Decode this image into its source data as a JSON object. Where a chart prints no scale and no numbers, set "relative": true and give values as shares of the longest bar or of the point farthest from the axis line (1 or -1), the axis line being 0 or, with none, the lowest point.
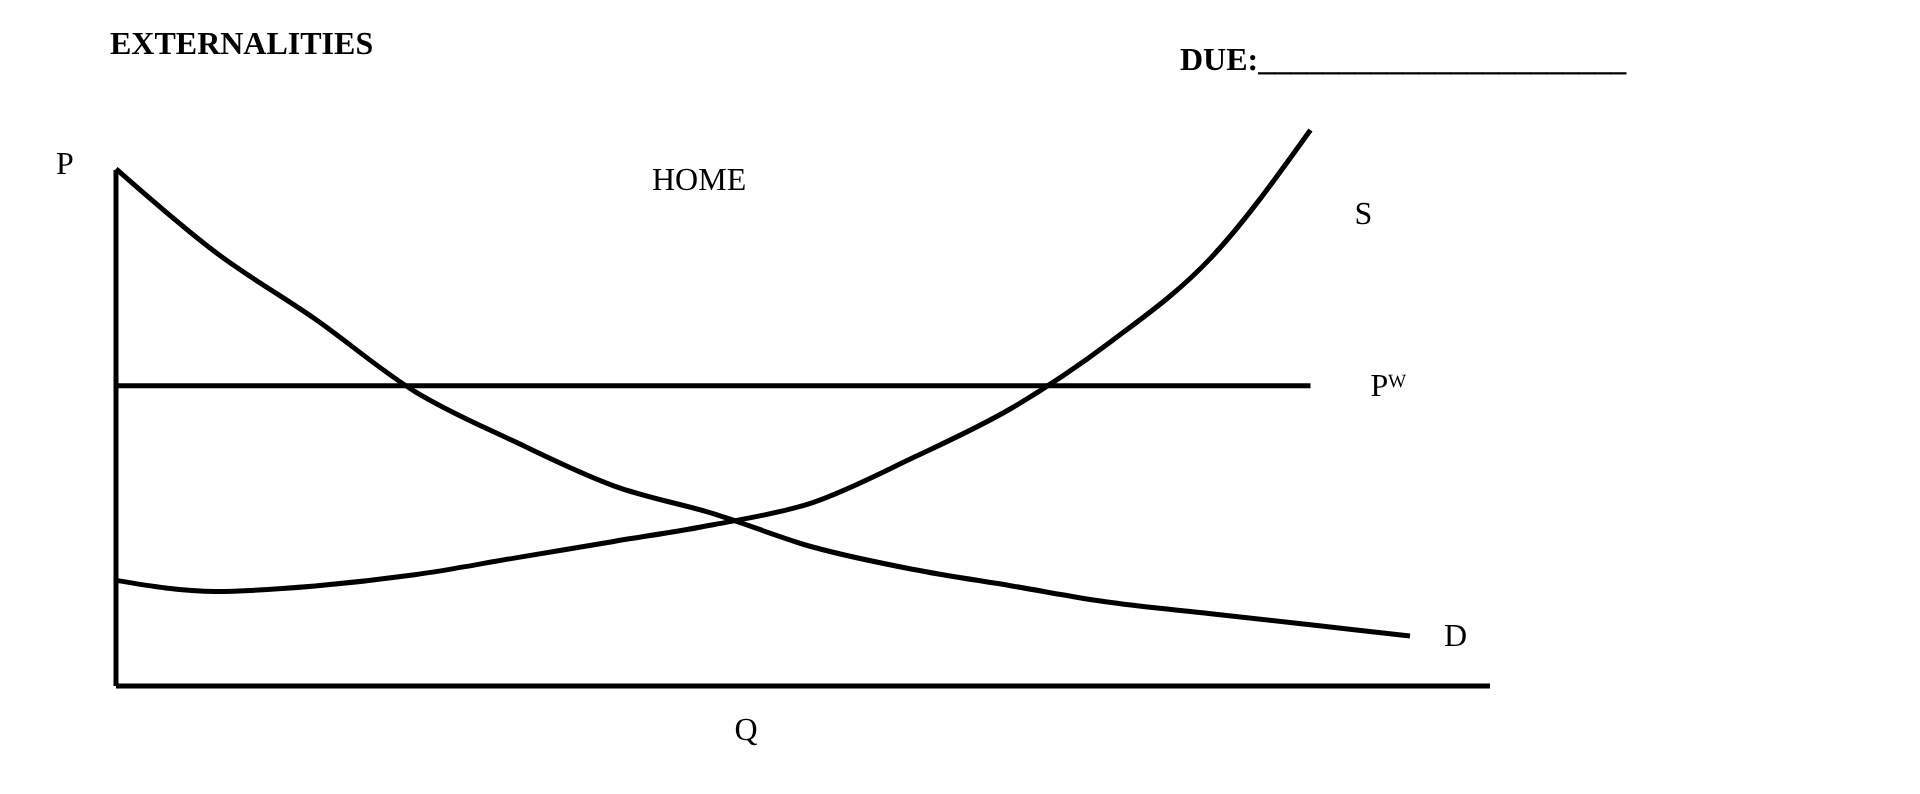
{
  "chart_data": {
    "type": "line",
    "relative": true,
    "title": "EXTERNALITIES",
    "xlabel": "Q",
    "ylabel": "P",
    "annotations": [
      "DUE:_______________________",
      "HOME"
    ],
    "categories": [
      null,
      null,
      null,
      null,
      null,
      null,
      null,
      null,
      null,
      null,
      null,
      null,
      null,
      null
    ],
    "legend": false,
    "marker": "none",
    "line_style": "solid",
    "series": [
      {
        "name": "D",
        "color": "#000000",
        "values": [
          0.93,
          0.78,
          0.66,
          0.53,
          0.44,
          0.36,
          0.31,
          0.25,
          0.21,
          0.18,
          0.15,
          0.13,
          0.11,
          0.09
        ]
      },
      {
        "name": "S",
        "color": "#000000",
        "values": [
          0.19,
          0.17,
          0.18,
          0.2,
          0.23,
          0.26,
          0.29,
          0.33,
          0.41,
          0.5,
          0.62,
          0.77,
          1.0,
          null
        ]
      },
      {
        "name": "Pᵂ",
        "color": "#000000",
        "values": [
          0.54,
          0.54,
          0.54,
          0.54,
          0.54,
          0.54,
          0.54,
          0.54,
          0.54,
          0.54,
          0.54,
          0.54,
          0.54,
          null
        ]
      }
    ]
  }
}
